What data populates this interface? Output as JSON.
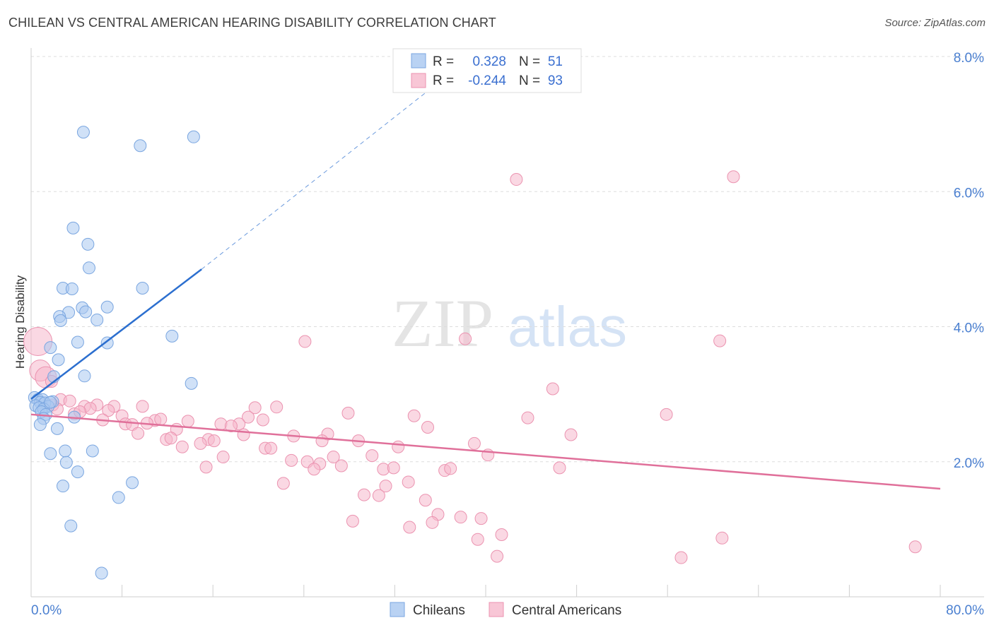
{
  "title": "CHILEAN VS CENTRAL AMERICAN HEARING DISABILITY CORRELATION CHART",
  "source": "Source: ZipAtlas.com",
  "watermark": {
    "zip": "ZIP",
    "atlas": "atlas"
  },
  "colors": {
    "chileans_fill": "#a9c8f0",
    "chileans_stroke": "#7aa6e0",
    "chileans_line": "#2c6fcf",
    "central_fill": "#f6b8cc",
    "central_stroke": "#eb93b0",
    "central_line": "#e0709a",
    "grid": "#dddddd",
    "tick_text": "#4a7fd0"
  },
  "legend": {
    "chileans": {
      "r_label": "R =",
      "r_value": "0.328",
      "n_label": "N =",
      "n_value": "51"
    },
    "central": {
      "r_label": "R =",
      "r_value": "-0.244",
      "n_label": "N =",
      "n_value": "93"
    }
  },
  "bottom_legend": [
    "Chileans",
    "Central Americans"
  ],
  "chart_data": {
    "type": "scatter",
    "title": "CHILEAN VS CENTRAL AMERICAN HEARING DISABILITY CORRELATION CHART",
    "ylabel": "Hearing Disability",
    "xlabel": "",
    "xlim": [
      0,
      80
    ],
    "ylim": [
      0,
      8
    ],
    "x_ticks": [
      "0.0%",
      "80.0%"
    ],
    "y_ticks": [
      {
        "value": 2,
        "label": "2.0%"
      },
      {
        "value": 4,
        "label": "4.0%"
      },
      {
        "value": 6,
        "label": "6.0%"
      },
      {
        "value": 8,
        "label": "8.0%"
      }
    ],
    "grid": true,
    "legend_position": "top-center",
    "series": [
      {
        "name": "Chileans",
        "r": 0.328,
        "n": 51,
        "trend": {
          "x": [
            0,
            15
          ],
          "y": [
            2.93,
            4.85
          ],
          "extended_to": [
            38,
            7.9
          ]
        },
        "points": [
          {
            "x": 4.6,
            "y": 6.88
          },
          {
            "x": 9.6,
            "y": 6.68
          },
          {
            "x": 14.3,
            "y": 6.81
          },
          {
            "x": 3.7,
            "y": 5.46
          },
          {
            "x": 5.0,
            "y": 5.22
          },
          {
            "x": 5.1,
            "y": 4.87
          },
          {
            "x": 2.8,
            "y": 4.57
          },
          {
            "x": 3.6,
            "y": 4.56
          },
          {
            "x": 9.8,
            "y": 4.57
          },
          {
            "x": 4.5,
            "y": 4.28
          },
          {
            "x": 6.7,
            "y": 4.29
          },
          {
            "x": 3.3,
            "y": 4.21
          },
          {
            "x": 4.8,
            "y": 4.22
          },
          {
            "x": 2.5,
            "y": 4.15
          },
          {
            "x": 2.6,
            "y": 4.09
          },
          {
            "x": 5.8,
            "y": 4.1
          },
          {
            "x": 12.4,
            "y": 3.86
          },
          {
            "x": 4.1,
            "y": 3.77
          },
          {
            "x": 6.7,
            "y": 3.76
          },
          {
            "x": 1.7,
            "y": 3.69
          },
          {
            "x": 2.4,
            "y": 3.51
          },
          {
            "x": 4.7,
            "y": 3.27
          },
          {
            "x": 2.0,
            "y": 3.26
          },
          {
            "x": 14.1,
            "y": 3.16
          },
          {
            "x": 0.3,
            "y": 2.95
          },
          {
            "x": 0.6,
            "y": 2.92
          },
          {
            "x": 1.0,
            "y": 2.92
          },
          {
            "x": 1.9,
            "y": 2.89
          },
          {
            "x": 0.8,
            "y": 2.88
          },
          {
            "x": 1.2,
            "y": 2.87
          },
          {
            "x": 0.4,
            "y": 2.83
          },
          {
            "x": 1.5,
            "y": 2.82
          },
          {
            "x": 0.7,
            "y": 2.8
          },
          {
            "x": 1.1,
            "y": 2.78
          },
          {
            "x": 0.9,
            "y": 2.74
          },
          {
            "x": 1.3,
            "y": 2.7
          },
          {
            "x": 3.8,
            "y": 2.66
          },
          {
            "x": 1.1,
            "y": 2.64
          },
          {
            "x": 0.8,
            "y": 2.55
          },
          {
            "x": 2.3,
            "y": 2.49
          },
          {
            "x": 3.0,
            "y": 2.16
          },
          {
            "x": 5.4,
            "y": 2.16
          },
          {
            "x": 1.7,
            "y": 2.12
          },
          {
            "x": 3.1,
            "y": 1.99
          },
          {
            "x": 4.1,
            "y": 1.85
          },
          {
            "x": 2.8,
            "y": 1.64
          },
          {
            "x": 8.9,
            "y": 1.69
          },
          {
            "x": 7.7,
            "y": 1.47
          },
          {
            "x": 3.5,
            "y": 1.05
          },
          {
            "x": 6.2,
            "y": 0.35
          },
          {
            "x": 1.7,
            "y": 2.88
          }
        ]
      },
      {
        "name": "Central Americans",
        "r": -0.244,
        "n": 93,
        "trend": {
          "x": [
            0,
            80
          ],
          "y": [
            2.7,
            1.6
          ]
        },
        "points": [
          {
            "x": 42.7,
            "y": 6.18
          },
          {
            "x": 61.8,
            "y": 6.22
          },
          {
            "x": 24.1,
            "y": 3.78
          },
          {
            "x": 38.2,
            "y": 3.82
          },
          {
            "x": 60.6,
            "y": 3.79
          },
          {
            "x": 0.6,
            "y": 3.78
          },
          {
            "x": 0.8,
            "y": 3.35
          },
          {
            "x": 1.3,
            "y": 3.25
          },
          {
            "x": 1.8,
            "y": 3.19
          },
          {
            "x": 45.9,
            "y": 3.08
          },
          {
            "x": 2.6,
            "y": 2.92
          },
          {
            "x": 3.4,
            "y": 2.9
          },
          {
            "x": 1.9,
            "y": 2.84
          },
          {
            "x": 4.7,
            "y": 2.82
          },
          {
            "x": 5.8,
            "y": 2.84
          },
          {
            "x": 7.3,
            "y": 2.82
          },
          {
            "x": 9.8,
            "y": 2.82
          },
          {
            "x": 21.6,
            "y": 2.81
          },
          {
            "x": 19.7,
            "y": 2.8
          },
          {
            "x": 2.3,
            "y": 2.78
          },
          {
            "x": 5.2,
            "y": 2.79
          },
          {
            "x": 6.8,
            "y": 2.76
          },
          {
            "x": 3.8,
            "y": 2.71
          },
          {
            "x": 4.3,
            "y": 2.74
          },
          {
            "x": 8.0,
            "y": 2.68
          },
          {
            "x": 27.9,
            "y": 2.72
          },
          {
            "x": 33.7,
            "y": 2.68
          },
          {
            "x": 43.7,
            "y": 2.65
          },
          {
            "x": 55.9,
            "y": 2.7
          },
          {
            "x": 19.1,
            "y": 2.66
          },
          {
            "x": 6.3,
            "y": 2.62
          },
          {
            "x": 10.9,
            "y": 2.61
          },
          {
            "x": 11.4,
            "y": 2.63
          },
          {
            "x": 13.8,
            "y": 2.6
          },
          {
            "x": 20.4,
            "y": 2.62
          },
          {
            "x": 8.3,
            "y": 2.56
          },
          {
            "x": 8.9,
            "y": 2.55
          },
          {
            "x": 10.2,
            "y": 2.57
          },
          {
            "x": 16.7,
            "y": 2.56
          },
          {
            "x": 18.3,
            "y": 2.56
          },
          {
            "x": 17.6,
            "y": 2.53
          },
          {
            "x": 12.8,
            "y": 2.48
          },
          {
            "x": 34.9,
            "y": 2.51
          },
          {
            "x": 9.4,
            "y": 2.42
          },
          {
            "x": 23.1,
            "y": 2.38
          },
          {
            "x": 26.1,
            "y": 2.41
          },
          {
            "x": 47.5,
            "y": 2.4
          },
          {
            "x": 11.9,
            "y": 2.33
          },
          {
            "x": 12.3,
            "y": 2.35
          },
          {
            "x": 15.6,
            "y": 2.33
          },
          {
            "x": 16.1,
            "y": 2.31
          },
          {
            "x": 18.7,
            "y": 2.4
          },
          {
            "x": 25.6,
            "y": 2.31
          },
          {
            "x": 28.8,
            "y": 2.31
          },
          {
            "x": 14.9,
            "y": 2.27
          },
          {
            "x": 39.0,
            "y": 2.27
          },
          {
            "x": 13.3,
            "y": 2.22
          },
          {
            "x": 20.6,
            "y": 2.2
          },
          {
            "x": 21.1,
            "y": 2.2
          },
          {
            "x": 32.3,
            "y": 2.22
          },
          {
            "x": 40.2,
            "y": 2.1
          },
          {
            "x": 16.9,
            "y": 2.07
          },
          {
            "x": 22.9,
            "y": 2.02
          },
          {
            "x": 24.3,
            "y": 2.0
          },
          {
            "x": 25.4,
            "y": 1.97
          },
          {
            "x": 26.6,
            "y": 2.07
          },
          {
            "x": 27.3,
            "y": 1.94
          },
          {
            "x": 30.0,
            "y": 2.09
          },
          {
            "x": 31.0,
            "y": 1.89
          },
          {
            "x": 31.9,
            "y": 1.91
          },
          {
            "x": 15.4,
            "y": 1.92
          },
          {
            "x": 24.9,
            "y": 1.89
          },
          {
            "x": 36.4,
            "y": 1.87
          },
          {
            "x": 36.9,
            "y": 1.9
          },
          {
            "x": 46.5,
            "y": 1.91
          },
          {
            "x": 22.2,
            "y": 1.68
          },
          {
            "x": 33.2,
            "y": 1.7
          },
          {
            "x": 31.2,
            "y": 1.64
          },
          {
            "x": 29.3,
            "y": 1.51
          },
          {
            "x": 30.6,
            "y": 1.5
          },
          {
            "x": 34.7,
            "y": 1.43
          },
          {
            "x": 35.8,
            "y": 1.22
          },
          {
            "x": 37.8,
            "y": 1.18
          },
          {
            "x": 39.6,
            "y": 1.16
          },
          {
            "x": 28.3,
            "y": 1.12
          },
          {
            "x": 35.3,
            "y": 1.1
          },
          {
            "x": 33.3,
            "y": 1.03
          },
          {
            "x": 41.4,
            "y": 0.92
          },
          {
            "x": 39.3,
            "y": 0.85
          },
          {
            "x": 60.8,
            "y": 0.87
          },
          {
            "x": 77.8,
            "y": 0.74
          },
          {
            "x": 41.0,
            "y": 0.6
          },
          {
            "x": 57.2,
            "y": 0.58
          }
        ]
      }
    ]
  }
}
